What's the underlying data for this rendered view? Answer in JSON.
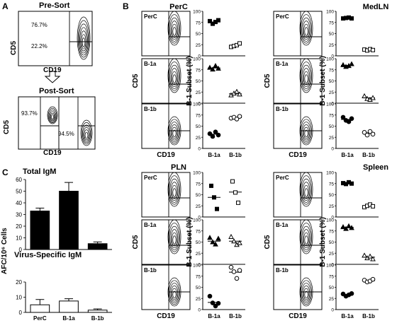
{
  "figure": {
    "panel_A": {
      "letter": "A",
      "presort_title": "Pre-Sort",
      "postsort_title": "Post-Sort",
      "x_label": "CD19",
      "y_label": "CD5",
      "presort_upper_pct": "76.7%",
      "presort_lower_pct": "22.2%",
      "post_left_pct": "93.7%",
      "post_right_pct": "94.5%"
    },
    "panel_B": {
      "letter": "B",
      "y_axis_label": "B-1 Subset (%)",
      "flow_x_label": "CD19",
      "flow_y_label": "CD5",
      "row_labels": [
        "PerC",
        "B-1a",
        "B-1b"
      ],
      "categories": [
        "B-1a",
        "B-1b"
      ],
      "y_ticks": [
        "0",
        "25",
        "50",
        "75",
        "100"
      ],
      "tissues": [
        "PerC",
        "MedLN",
        "PLN",
        "Spleen"
      ]
    },
    "panel_C": {
      "letter": "C",
      "title_top": "Total IgM",
      "title_bottom": "Virus-Specific IgM",
      "y_label": "AFC/10⁶ Cells",
      "top_ticks": [
        "0",
        "10",
        "20",
        "30",
        "40",
        "50",
        "60"
      ],
      "bottom_ticks": [
        "0",
        "10",
        "20"
      ],
      "categories": [
        "PerC",
        "B-1a",
        "B-1b"
      ]
    }
  },
  "chart_data": [
    {
      "type": "scatter",
      "panel": "B",
      "tissue": "PerC",
      "ylim": [
        0,
        100
      ],
      "categories": [
        "B-1a",
        "B-1b"
      ],
      "rows": [
        {
          "row": "PerC",
          "marker": "square",
          "B-1a": [
            78,
            72,
            76,
            80
          ],
          "B-1b": [
            20,
            22,
            24,
            28
          ],
          "mean": [
            76,
            24
          ]
        },
        {
          "row": "B-1a",
          "marker": "triangle",
          "B-1a": [
            80,
            76,
            84,
            78
          ],
          "B-1b": [
            18,
            22,
            26,
            20
          ],
          "mean": [
            79,
            21
          ]
        },
        {
          "row": "B-1b",
          "marker": "circle",
          "B-1a": [
            33,
            27,
            37,
            30
          ],
          "B-1b": [
            68,
            70,
            66,
            72
          ],
          "mean": [
            32,
            69
          ]
        }
      ]
    },
    {
      "type": "scatter",
      "panel": "B",
      "tissue": "MedLN",
      "ylim": [
        0,
        100
      ],
      "categories": [
        "B-1a",
        "B-1b"
      ],
      "rows": [
        {
          "row": "PerC",
          "marker": "square",
          "B-1a": [
            84,
            85,
            86,
            84
          ],
          "B-1b": [
            14,
            12,
            15,
            13
          ],
          "mean": [
            85,
            14
          ]
        },
        {
          "row": "B-1a",
          "marker": "triangle",
          "B-1a": [
            86,
            82,
            84,
            88
          ],
          "B-1b": [
            16,
            10,
            8,
            12
          ],
          "mean": [
            85,
            12
          ]
        },
        {
          "row": "B-1b",
          "marker": "circle",
          "B-1a": [
            70,
            63,
            60,
            67
          ],
          "B-1b": [
            36,
            30,
            38,
            32
          ],
          "mean": [
            65,
            35
          ]
        }
      ]
    },
    {
      "type": "scatter",
      "panel": "B",
      "tissue": "PLN",
      "ylim": [
        0,
        100
      ],
      "categories": [
        "B-1a",
        "B-1b"
      ],
      "rows": [
        {
          "row": "PerC",
          "marker": "square",
          "B-1a": [
            70,
            44,
            18
          ],
          "B-1b": [
            80,
            55,
            32
          ],
          "mean": [
            44,
            56
          ]
        },
        {
          "row": "B-1a",
          "marker": "triangle",
          "B-1a": [
            60,
            50,
            45,
            58
          ],
          "B-1b": [
            62,
            52,
            44,
            48
          ],
          "mean": [
            52,
            52
          ]
        },
        {
          "row": "B-1b",
          "marker": "circle",
          "B-1a": [
            30,
            15,
            8,
            14
          ],
          "B-1b": [
            95,
            85,
            70,
            88
          ],
          "mean": [
            16,
            84
          ]
        }
      ]
    },
    {
      "type": "scatter",
      "panel": "B",
      "tissue": "Spleen",
      "ylim": [
        0,
        100
      ],
      "categories": [
        "B-1a",
        "B-1b"
      ],
      "rows": [
        {
          "row": "PerC",
          "marker": "square",
          "B-1a": [
            76,
            74,
            78,
            75
          ],
          "B-1b": [
            22,
            25,
            28,
            24
          ],
          "mean": [
            76,
            25
          ]
        },
        {
          "row": "B-1a",
          "marker": "triangle",
          "B-1a": [
            84,
            80,
            86,
            82
          ],
          "B-1b": [
            20,
            14,
            18,
            12
          ],
          "mean": [
            83,
            16
          ]
        },
        {
          "row": "B-1b",
          "marker": "circle",
          "B-1a": [
            35,
            30,
            33,
            36
          ],
          "B-1b": [
            66,
            62,
            64,
            68
          ],
          "mean": [
            34,
            65
          ]
        }
      ]
    },
    {
      "type": "bar",
      "panel": "C",
      "title": "Total IgM",
      "categories": [
        "PerC",
        "B-1a",
        "B-1b"
      ],
      "values": [
        33,
        50,
        5
      ],
      "errors": [
        2.5,
        7.5,
        1.5
      ],
      "ylabel": "AFC/10⁶ Cells",
      "ylim": [
        0,
        60
      ],
      "fill": "#000000"
    },
    {
      "type": "bar",
      "panel": "C",
      "title": "Virus-Specific IgM",
      "categories": [
        "PerC",
        "B-1a",
        "B-1b"
      ],
      "values": [
        5,
        7.5,
        1.5
      ],
      "errors": [
        3.5,
        1.5,
        0.8
      ],
      "ylabel": "AFC/10⁶ Cells",
      "ylim": [
        0,
        20
      ],
      "fill": "#ffffff"
    }
  ]
}
